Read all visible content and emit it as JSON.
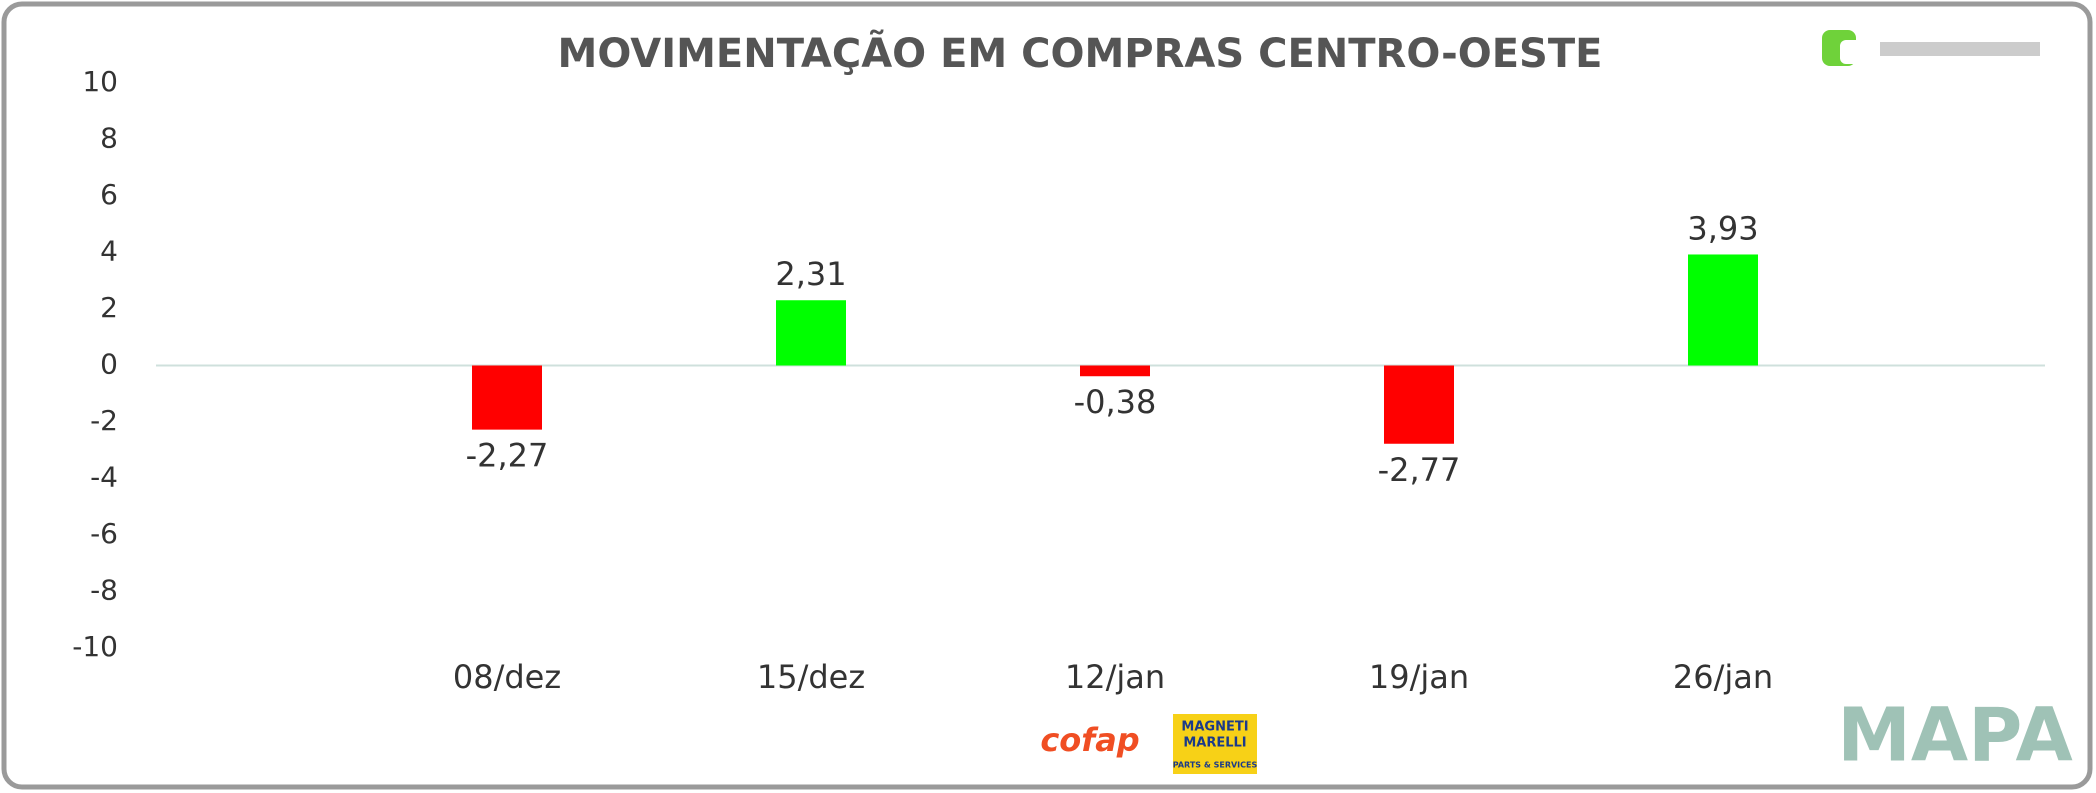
{
  "chart_data": {
    "type": "bar",
    "title": "MOVIMENTAÇÃO EM COMPRAS CENTRO-OESTE",
    "categories": [
      "08/dez",
      "15/dez",
      "12/jan",
      "19/jan",
      "26/jan"
    ],
    "values": [
      -2.27,
      2.31,
      -0.38,
      -2.77,
      3.93
    ],
    "value_labels": [
      "-2,27",
      "2,31",
      "-0,38",
      "-2,77",
      "3,93"
    ],
    "colors": [
      "#ff0000",
      "#00ff00",
      "#ff0000",
      "#ff0000",
      "#00ff00"
    ],
    "ylim": [
      -10,
      10
    ],
    "yticks": [
      -10,
      -8,
      -6,
      -4,
      -2,
      0,
      2,
      4,
      6,
      8,
      10
    ],
    "grid": false
  },
  "footer": {
    "sponsor_1": "cofap",
    "sponsor_2_line_1": "MAGNETI",
    "sponsor_2_line_2": "MARELLI",
    "sponsor_2_line_3": "PARTS & SERVICES",
    "brand": "MAPA"
  }
}
